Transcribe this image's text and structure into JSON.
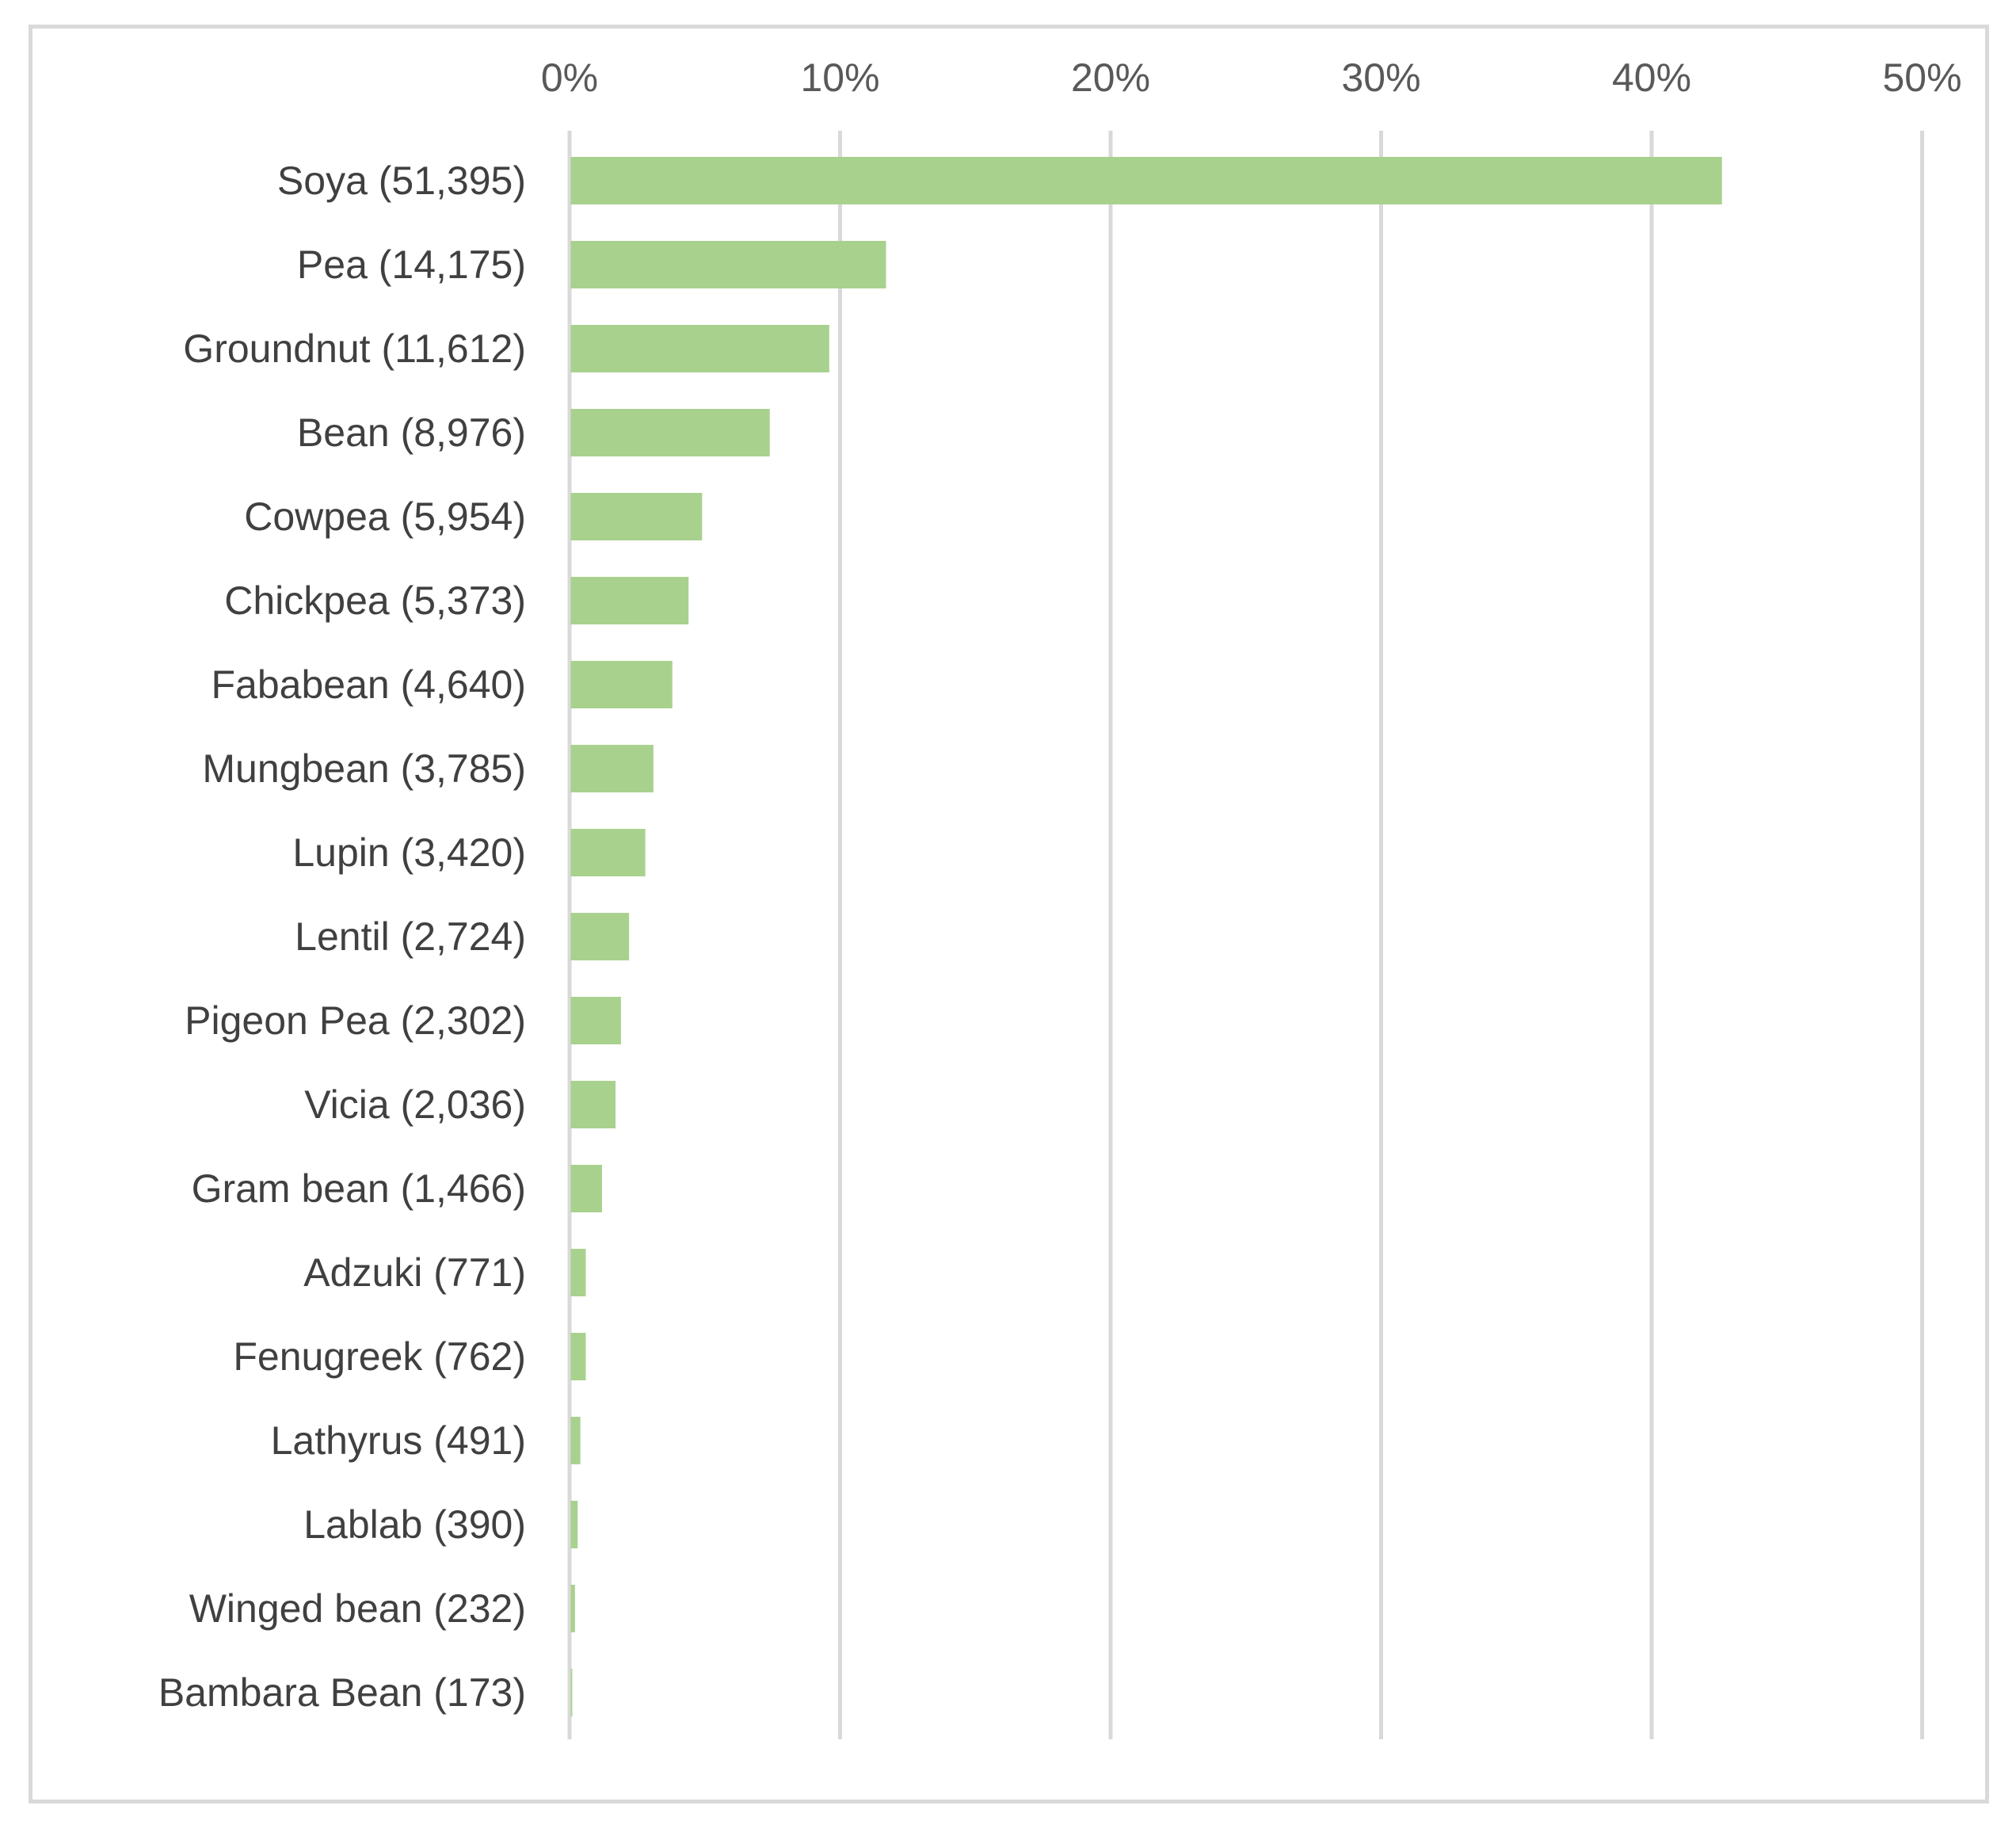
{
  "chart_data": {
    "type": "bar",
    "orientation": "horizontal",
    "title": "",
    "xlabel": "",
    "ylabel": "",
    "x_tick_labels": [
      "0%",
      "10%",
      "20%",
      "30%",
      "40%",
      "50%"
    ],
    "xlim": [
      0,
      50
    ],
    "x_axis_position": "top",
    "grid": true,
    "legend": "none",
    "bar_color": "#a9d18e",
    "categories": [
      "Soya (51,395)",
      "Pea (14,175)",
      "Groundnut (11,612)",
      "Bean (8,976)",
      "Cowpea (5,954)",
      "Chickpea (5,373)",
      "Fababean (4,640)",
      "Mungbean (3,785)",
      "Lupin (3,420)",
      "Lentil (2,724)",
      "Pigeon Pea (2,302)",
      "Vicia (2,036)",
      "Gram bean (1,466)",
      "Adzuki (771)",
      "Fenugreek (762)",
      "Lathyrus (491)",
      "Lablab (390)",
      "Winged bean (232)",
      "Bambara Bean (173)"
    ],
    "values": [
      42.6,
      11.7,
      9.6,
      7.4,
      4.9,
      4.4,
      3.8,
      3.1,
      2.8,
      2.2,
      1.9,
      1.7,
      1.2,
      0.6,
      0.6,
      0.4,
      0.3,
      0.2,
      0.1
    ]
  }
}
